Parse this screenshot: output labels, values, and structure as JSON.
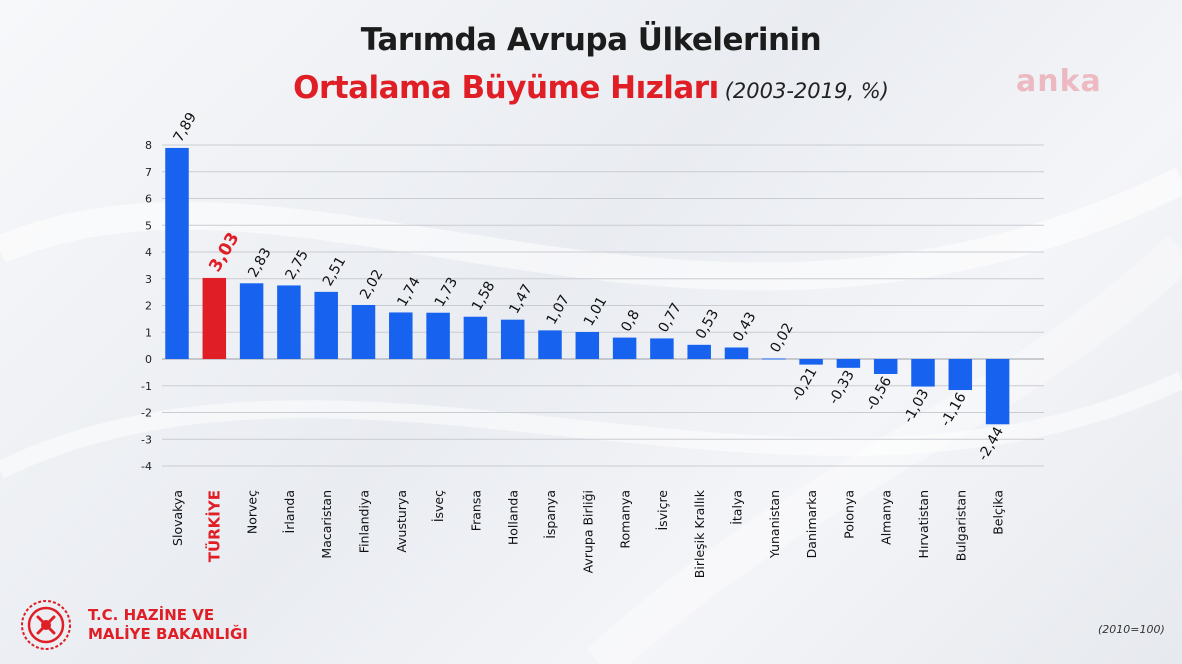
{
  "header": {
    "title_line1": "Tarımda Avrupa Ülkelerinin",
    "title_line2": "Ortalama Büyüme Hızları",
    "title_sub": "(2003-2019, %)"
  },
  "watermark": "anka",
  "footer": {
    "org_line1": "T.C. HAZİNE VE",
    "org_line2": "MALİYE BAKANLIĞI",
    "base_note": "(2010=100)"
  },
  "colors": {
    "bar": "#1763f0",
    "highlight": "#e01e25",
    "grid": "#c9ccd2",
    "axis_text": "#222222"
  },
  "chart_data": {
    "type": "bar",
    "title": "Tarımda Avrupa Ülkelerinin Ortalama Büyüme Hızları",
    "subtitle": "(2003-2019, %)",
    "xlabel": "",
    "ylabel": "",
    "ylim": [
      -4,
      8
    ],
    "yticks": [
      "8",
      "7",
      "6",
      "5",
      "4",
      "3",
      "2",
      "1",
      "0",
      "-1",
      "-2",
      "-3",
      "-4"
    ],
    "ytick_values": [
      8,
      7,
      6,
      5,
      4,
      3,
      2,
      1,
      0,
      -1,
      -2,
      -3,
      -4
    ],
    "grid": true,
    "highlight_category": "TÜRKİYE",
    "categories": [
      "Slovakya",
      "TÜRKİYE",
      "Norveç",
      "İrlanda",
      "Macaristan",
      "Finlandiya",
      "Avusturya",
      "İsveç",
      "Fransa",
      "Hollanda",
      "İspanya",
      "Avrupa Birliği",
      "Romanya",
      "İsviçre",
      "Birleşik Krallık",
      "İtalya",
      "Yunanistan",
      "Danimarka",
      "Polonya",
      "Almanya",
      "Hırvatistan",
      "Bulgaristan",
      "Belçika"
    ],
    "values": [
      7.89,
      3.03,
      2.83,
      2.75,
      2.51,
      2.02,
      1.74,
      1.73,
      1.58,
      1.47,
      1.07,
      1.01,
      0.8,
      0.77,
      0.53,
      0.43,
      0.02,
      -0.21,
      -0.33,
      -0.56,
      -1.03,
      -1.16,
      -2.44
    ],
    "value_labels": [
      "7,89",
      "3,03",
      "2,83",
      "2,75",
      "2,51",
      "2,02",
      "1,74",
      "1,73",
      "1,58",
      "1,47",
      "1,07",
      "1,01",
      "0,8",
      "0,77",
      "0,53",
      "0,43",
      "0,02",
      "-0,21",
      "-0,33",
      "-0,56",
      "-1,03",
      "-1,16",
      "-2,44"
    ]
  }
}
